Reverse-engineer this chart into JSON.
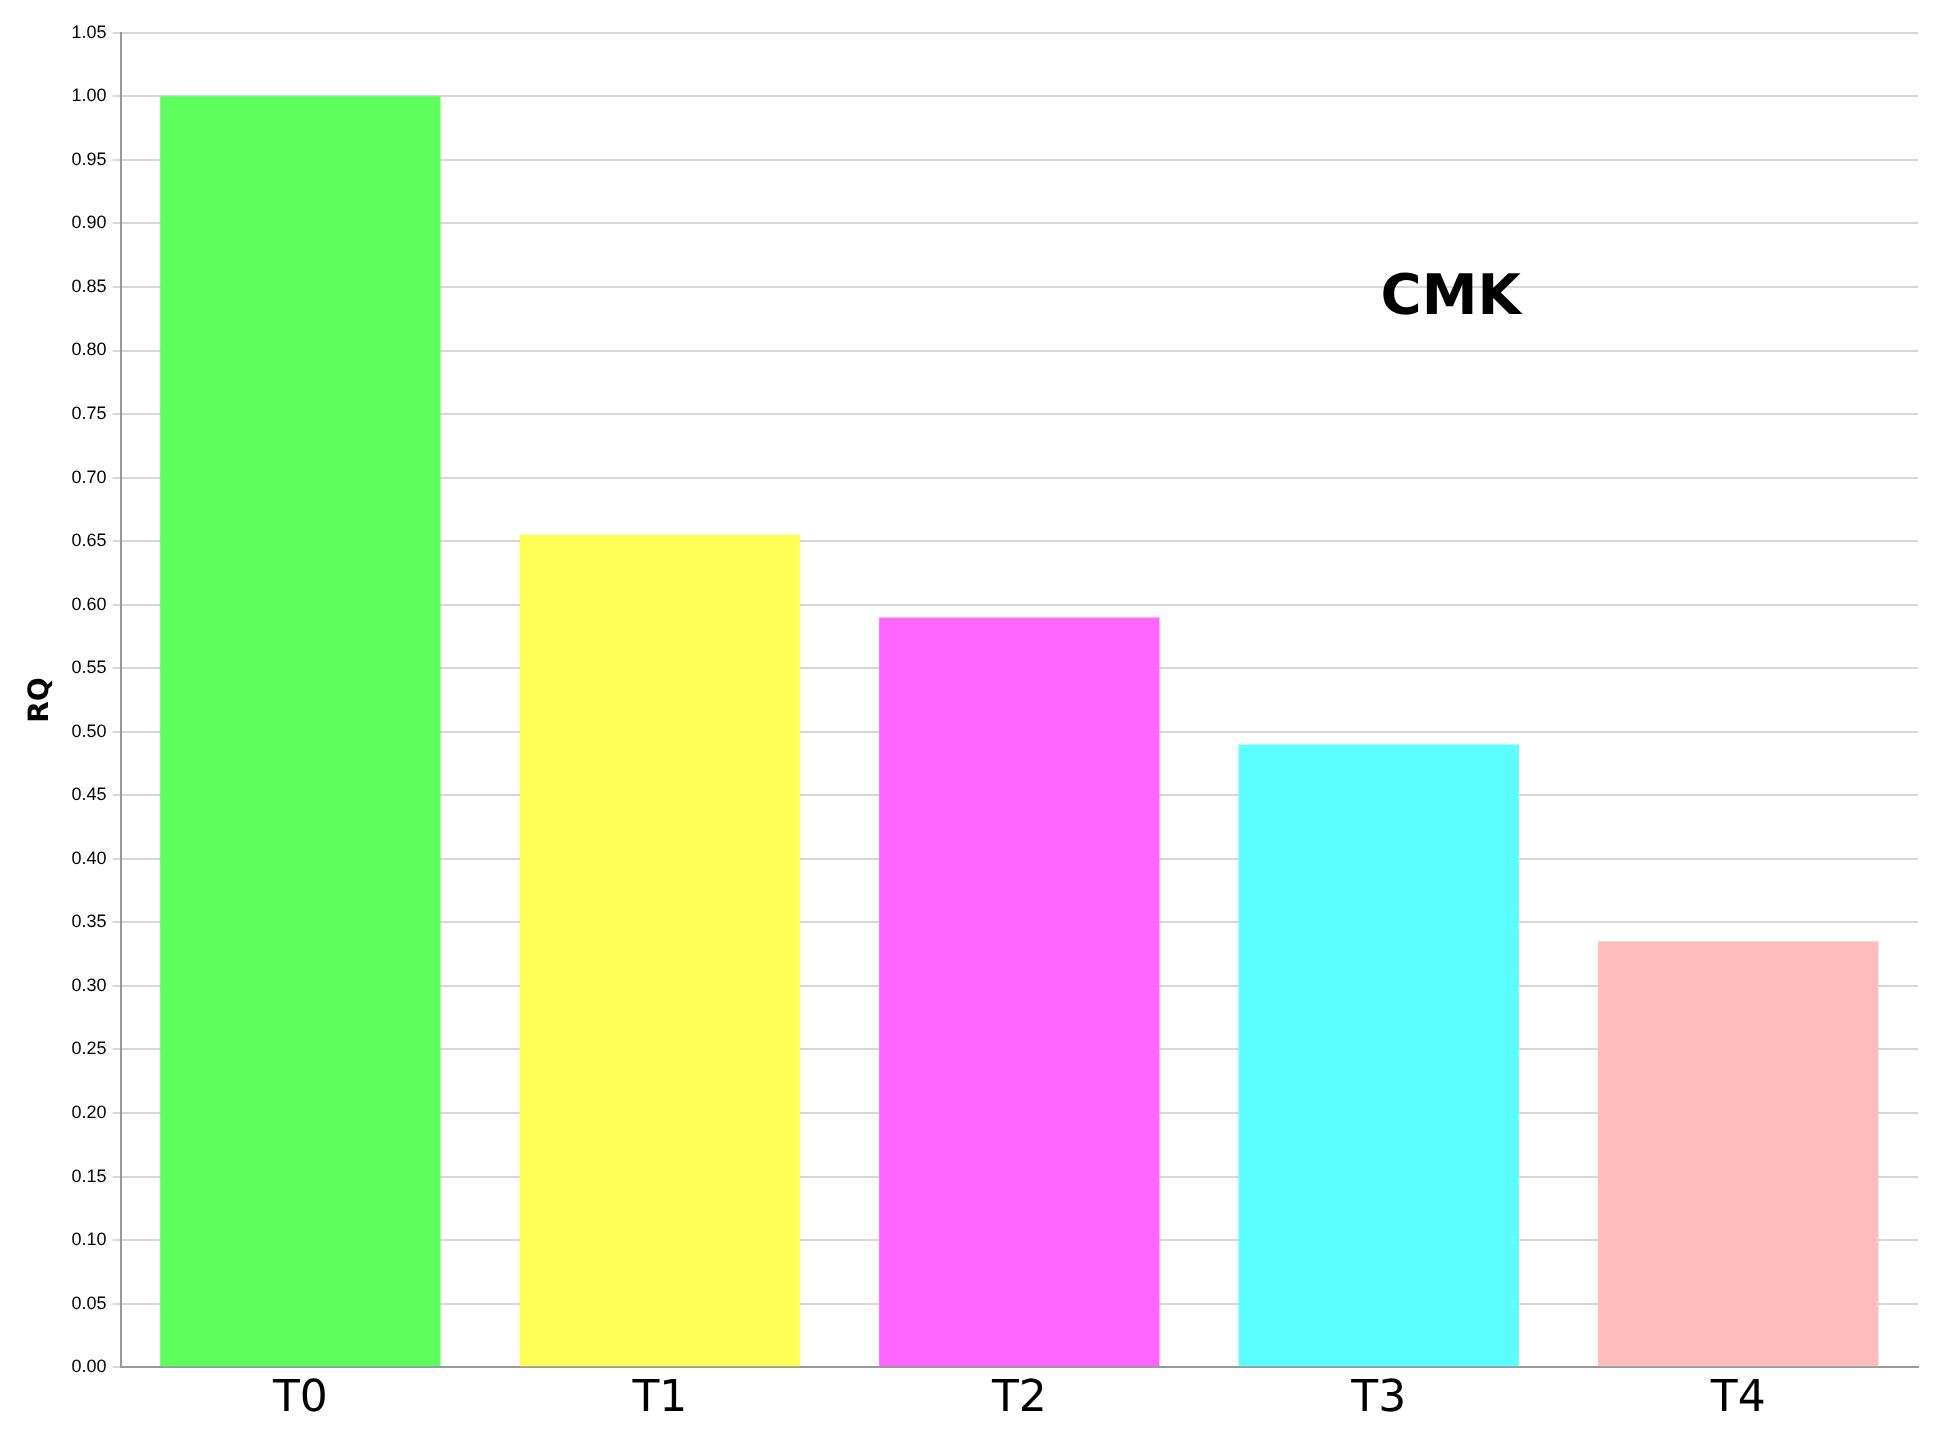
{
  "chart_data": {
    "type": "bar",
    "ylabel": "RQ",
    "annotations": [
      "CMK"
    ],
    "categories": [
      "T0",
      "T1",
      "T2",
      "T3",
      "T4"
    ],
    "values": [
      1.0,
      0.655,
      0.59,
      0.49,
      0.335
    ],
    "colors": [
      "#5cff5c",
      "#ffff55",
      "#ff66ff",
      "#5cffff",
      "#ffbcbc"
    ],
    "ylim": [
      0,
      1.05
    ],
    "yticks": [
      {
        "value": 0,
        "label": "0.00"
      },
      {
        "value": 0.05,
        "label": "0.05"
      },
      {
        "value": 0.1,
        "label": "0.10"
      },
      {
        "value": 0.15,
        "label": "0.15"
      },
      {
        "value": 0.2,
        "label": "0.20"
      },
      {
        "value": 0.25,
        "label": "0.25"
      },
      {
        "value": 0.3,
        "label": "0.30"
      },
      {
        "value": 0.35,
        "label": "0.35"
      },
      {
        "value": 0.4,
        "label": "0.40"
      },
      {
        "value": 0.45,
        "label": "0.45"
      },
      {
        "value": 0.5,
        "label": "0.50"
      },
      {
        "value": 0.55,
        "label": "0.55"
      },
      {
        "value": 0.6,
        "label": "0.60"
      },
      {
        "value": 0.65,
        "label": "0.65"
      },
      {
        "value": 0.7,
        "label": "0.70"
      },
      {
        "value": 0.75,
        "label": "0.75"
      },
      {
        "value": 0.8,
        "label": "0.80"
      },
      {
        "value": 0.85,
        "label": "0.85"
      },
      {
        "value": 0.9,
        "label": "0.90"
      },
      {
        "value": 0.95,
        "label": "0.95"
      },
      {
        "value": 1.0,
        "label": "1.00"
      },
      {
        "value": 1.05,
        "label": "1.05"
      }
    ],
    "grid": "y"
  }
}
